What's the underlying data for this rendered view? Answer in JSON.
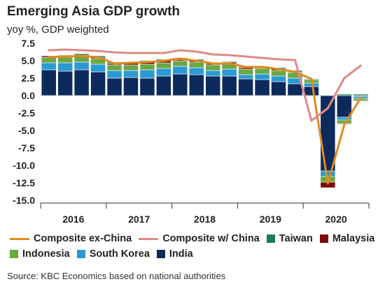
{
  "title": "Emerging Asia GDP growth",
  "subtitle": "yoy %, GDP weighted",
  "source": "Source: KBC Economics based on national authorities",
  "chart_data": {
    "type": "bar",
    "stacked": true,
    "ylim": [
      -15,
      7.5
    ],
    "yticks": [
      7.5,
      5.0,
      2.5,
      0.0,
      -2.5,
      -5.0,
      -7.5,
      -10.0,
      -12.5,
      -15.0
    ],
    "yticks_labels": [
      "7.5",
      "5.0",
      "2.5",
      "0.0",
      "-2.5",
      "-5.0",
      "-7.5",
      "-10.0",
      "-12.5",
      "-15.0"
    ],
    "year_labels": [
      "2016",
      "2017",
      "2018",
      "2019",
      "2020"
    ],
    "categories": [
      "2016Q1",
      "2016Q2",
      "2016Q3",
      "2016Q4",
      "2017Q1",
      "2017Q2",
      "2017Q3",
      "2017Q4",
      "2018Q1",
      "2018Q2",
      "2018Q3",
      "2018Q4",
      "2019Q1",
      "2019Q2",
      "2019Q3",
      "2019Q4",
      "2020Q1",
      "2020Q2",
      "2020Q3",
      "2020Q4"
    ],
    "series": [
      {
        "name": "India",
        "kind": "bar",
        "color": "#0d2a5c",
        "values": [
          3.7,
          3.5,
          3.7,
          3.4,
          2.5,
          2.6,
          2.5,
          2.8,
          3.1,
          3.0,
          2.8,
          2.8,
          2.4,
          2.3,
          2.0,
          1.7,
          1.3,
          -10.8,
          -3.1,
          -0.1
        ]
      },
      {
        "name": "South Korea",
        "kind": "bar",
        "color": "#2a9ad4",
        "values": [
          1.0,
          1.2,
          1.1,
          1.1,
          1.1,
          1.0,
          1.2,
          1.1,
          1.1,
          1.0,
          0.8,
          1.0,
          0.6,
          0.8,
          0.8,
          0.8,
          0.5,
          -0.8,
          -0.4,
          -0.3
        ]
      },
      {
        "name": "Indonesia",
        "kind": "bar",
        "color": "#6aa842",
        "values": [
          0.8,
          0.8,
          0.8,
          0.8,
          0.8,
          0.8,
          0.8,
          0.8,
          0.8,
          0.8,
          0.8,
          0.8,
          0.8,
          0.8,
          0.8,
          0.8,
          0.5,
          -0.8,
          -0.5,
          -0.3
        ]
      },
      {
        "name": "Malaysia",
        "kind": "bar",
        "color": "#7a0c0c",
        "values": [
          0.2,
          0.2,
          0.2,
          0.2,
          0.2,
          0.3,
          0.3,
          0.3,
          0.2,
          0.2,
          0.2,
          0.2,
          0.2,
          0.2,
          0.2,
          0.1,
          0.0,
          -0.8,
          -0.1,
          -0.1
        ]
      },
      {
        "name": "Taiwan",
        "kind": "bar",
        "color": "#1e7a5c",
        "values": [
          0.0,
          0.1,
          0.2,
          0.2,
          0.2,
          0.1,
          0.2,
          0.2,
          0.2,
          0.2,
          0.1,
          0.1,
          0.1,
          0.1,
          0.2,
          0.2,
          0.1,
          0.0,
          0.2,
          0.2
        ]
      },
      {
        "name": "Composite ex-China",
        "kind": "line",
        "color": "#e08a1e",
        "values": [
          5.5,
          5.6,
          5.7,
          5.5,
          4.6,
          4.7,
          4.8,
          5.0,
          5.3,
          5.0,
          4.6,
          4.6,
          4.1,
          4.1,
          3.8,
          3.4,
          2.4,
          -12.6,
          -4.2,
          -0.3
        ]
      },
      {
        "name": "Composite w/ China",
        "kind": "line",
        "color": "#e08a86",
        "values": [
          6.5,
          6.6,
          6.5,
          6.4,
          6.2,
          6.1,
          6.1,
          6.1,
          6.5,
          6.3,
          5.9,
          5.8,
          5.6,
          5.4,
          5.2,
          5.1,
          -3.6,
          -1.8,
          2.5,
          4.3
        ]
      }
    ],
    "legend": {
      "row1": [
        "Composite ex-China",
        "Composite w/ China",
        "Taiwan",
        "Malaysia"
      ],
      "row2": [
        "Indonesia",
        "South Korea",
        "India"
      ]
    },
    "grid": false,
    "legend_position": "bottom"
  }
}
